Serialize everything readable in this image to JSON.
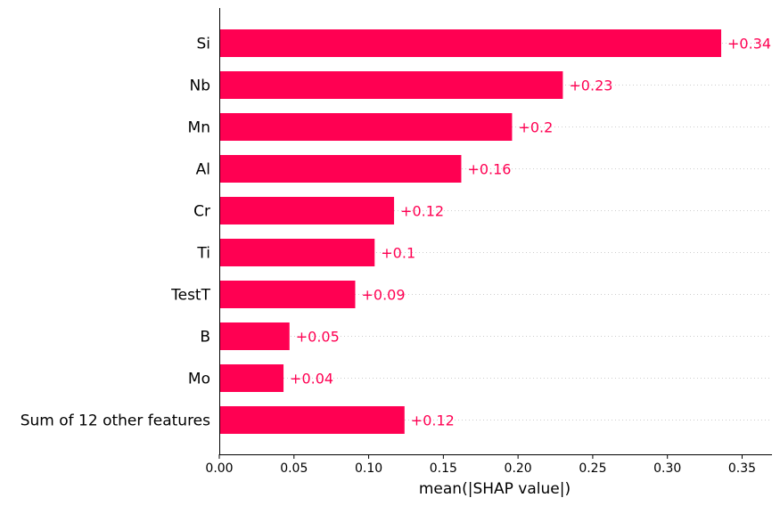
{
  "chart_data": {
    "type": "bar",
    "orientation": "horizontal",
    "categories": [
      "Si",
      "Nb",
      "Mn",
      "Al",
      "Cr",
      "Ti",
      "TestT",
      "B",
      "Mo",
      "Sum of 12 other features"
    ],
    "values": [
      0.336,
      0.23,
      0.196,
      0.162,
      0.117,
      0.104,
      0.091,
      0.047,
      0.043,
      0.124
    ],
    "value_labels": [
      "+0.34",
      "+0.23",
      "+0.2",
      "+0.16",
      "+0.12",
      "+0.1",
      "+0.09",
      "+0.05",
      "+0.04",
      "+0.12"
    ],
    "xlabel": "mean(|SHAP value|)",
    "ylabel": "",
    "title": "",
    "xlim": [
      0,
      0.37
    ],
    "xticks": [
      0.0,
      0.05,
      0.1,
      0.15,
      0.2,
      0.25,
      0.3,
      0.35
    ],
    "xtick_labels": [
      "0.00",
      "0.05",
      "0.10",
      "0.15",
      "0.20",
      "0.25",
      "0.30",
      "0.35"
    ],
    "grid": "dotted horizontal lines per row",
    "bar_color": "#ff0052",
    "label_color": "#ff0052"
  }
}
